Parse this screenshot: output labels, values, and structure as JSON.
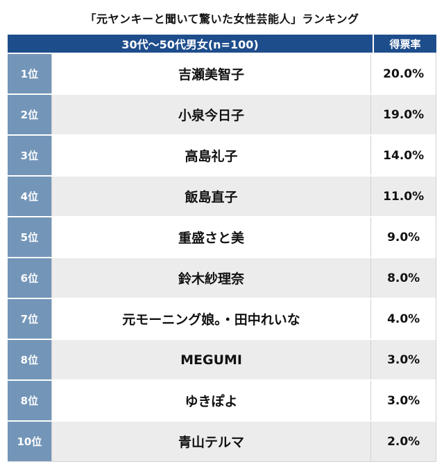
{
  "title": "「元ヤンキーと聞いて驚いた女性芸能人」ランキング",
  "chart_data": {
    "type": "table",
    "title": "「元ヤンキーと聞いて驚いた女性芸能人」ランキング",
    "header": {
      "main": "30代〜50代男女(n=100)",
      "rate": "得票率"
    },
    "rows": [
      {
        "rank": "1位",
        "name": "吉瀬美智子",
        "rate": "20.0%",
        "value": 20.0
      },
      {
        "rank": "2位",
        "name": "小泉今日子",
        "rate": "19.0%",
        "value": 19.0
      },
      {
        "rank": "3位",
        "name": "高島礼子",
        "rate": "14.0%",
        "value": 14.0
      },
      {
        "rank": "4位",
        "name": "飯島直子",
        "rate": "11.0%",
        "value": 11.0
      },
      {
        "rank": "5位",
        "name": "重盛さと美",
        "rate": "9.0%",
        "value": 9.0
      },
      {
        "rank": "6位",
        "name": "鈴木紗理奈",
        "rate": "8.0%",
        "value": 8.0
      },
      {
        "rank": "7位",
        "name": "元モーニング娘。・田中れいな",
        "rate": "4.0%",
        "value": 4.0
      },
      {
        "rank": "8位",
        "name": "MEGUMI",
        "rate": "3.0%",
        "value": 3.0
      },
      {
        "rank": "8位",
        "name": "ゆきぽよ",
        "rate": "3.0%",
        "value": 3.0
      },
      {
        "rank": "10位",
        "name": "青山テルマ",
        "rate": "2.0%",
        "value": 2.0
      }
    ]
  },
  "colors": {
    "header_bg": "#1e4d8c",
    "rank_bg": "#7395b8",
    "alt_row_bg": "#ececec"
  }
}
